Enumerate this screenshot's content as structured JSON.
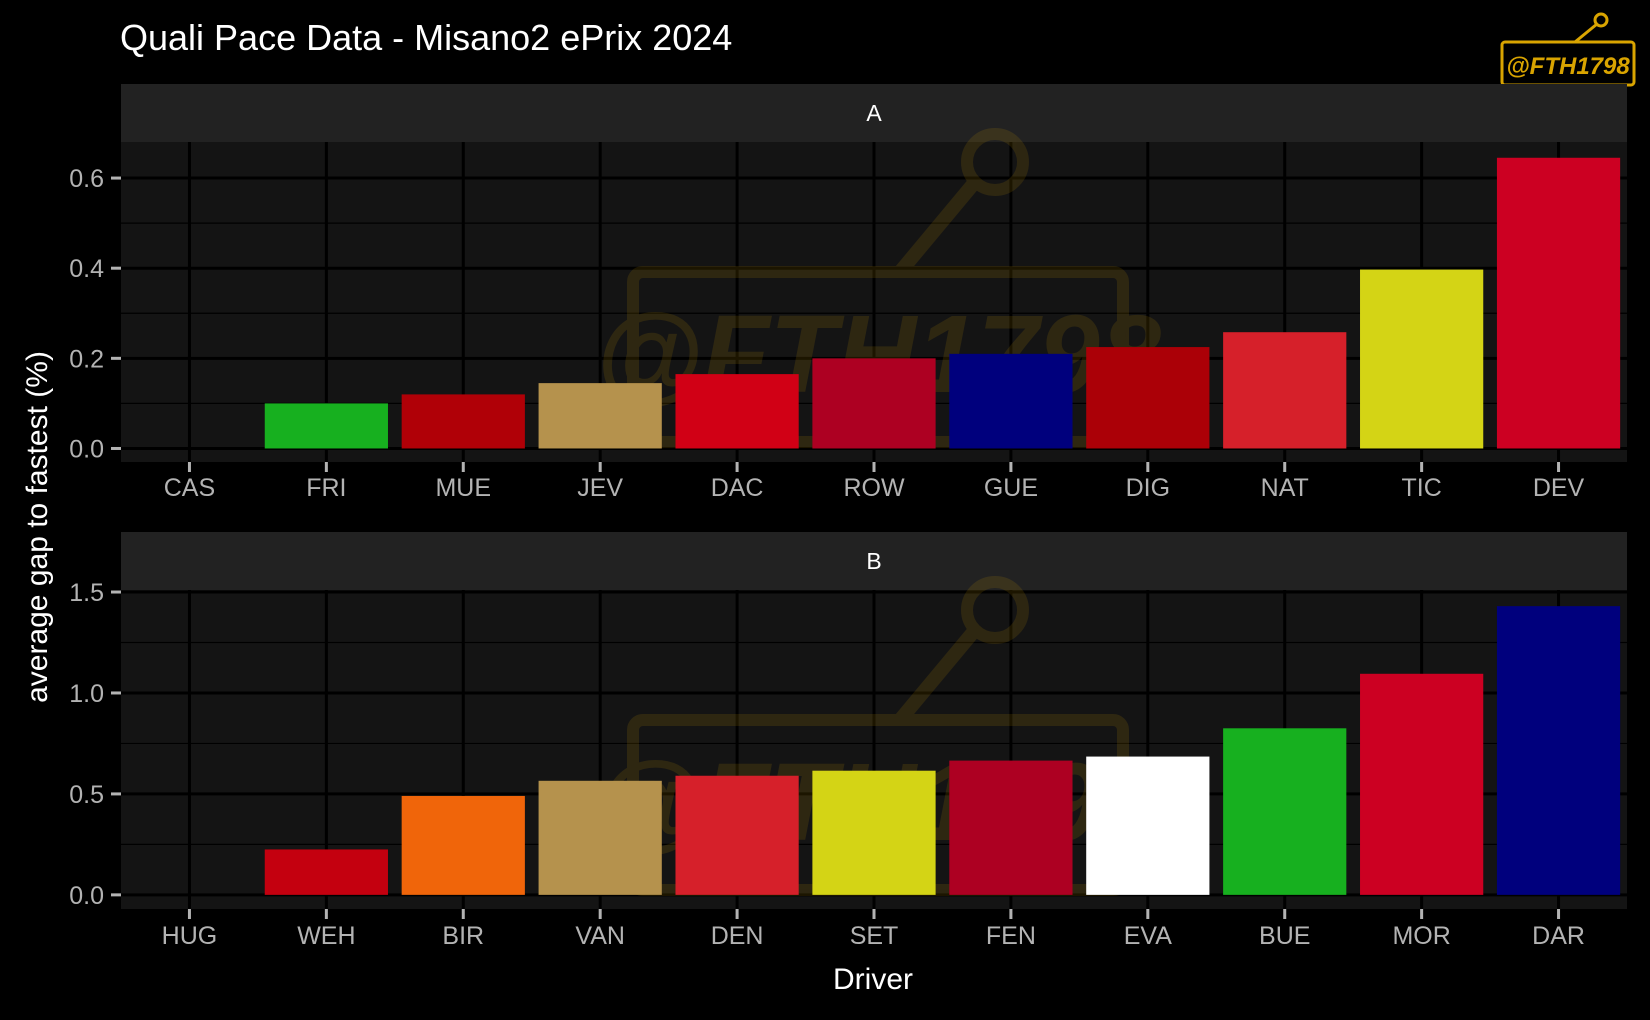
{
  "chart_data": {
    "type": "bar",
    "title": "Quali Pace Data - Misano2 ePrix 2024",
    "xlabel": "Driver",
    "ylabel": "average gap to fastest (%)",
    "watermark": "@FTH1798",
    "grid": true,
    "legend": "none",
    "colors": {
      "background": "#000000",
      "panel": "#141414",
      "strip": "#222222",
      "grid": "#000000",
      "text": "#ffffff",
      "tick_text": "#b3b3b3",
      "watermark": "#d9a400"
    },
    "panels": [
      {
        "label": "A",
        "categories": [
          "CAS",
          "FRI",
          "MUE",
          "JEV",
          "DAC",
          "ROW",
          "GUE",
          "DIG",
          "NAT",
          "TIC",
          "DEV"
        ],
        "values": [
          0.0,
          0.1,
          0.12,
          0.145,
          0.165,
          0.2,
          0.21,
          0.225,
          0.258,
          0.397,
          0.645
        ],
        "colors": [
          "#141414",
          "#17b01f",
          "#b00007",
          "#b5924d",
          "#d10015",
          "#ad0022",
          "#00007d",
          "#ab0007",
          "#d6202a",
          "#d4d415",
          "#cc0022"
        ],
        "ylim": [
          -0.03,
          0.68
        ],
        "yticks": [
          0.0,
          0.2,
          0.4,
          0.6
        ],
        "ytick_labels": [
          "0.0",
          "0.2",
          "0.4",
          "0.6"
        ]
      },
      {
        "label": "B",
        "categories": [
          "HUG",
          "WEH",
          "BIR",
          "VAN",
          "DEN",
          "SET",
          "FEN",
          "EVA",
          "BUE",
          "MOR",
          "DAR"
        ],
        "values": [
          0.0,
          0.225,
          0.49,
          0.565,
          0.59,
          0.615,
          0.665,
          0.685,
          0.825,
          1.095,
          1.43
        ],
        "colors": [
          "#141414",
          "#c4000f",
          "#f0650a",
          "#b5924d",
          "#d6202a",
          "#d4d415",
          "#ad0022",
          "#ffffff",
          "#17b01f",
          "#cc0022",
          "#00007d"
        ],
        "ylim": [
          -0.07,
          1.51
        ],
        "yticks": [
          0.0,
          0.5,
          1.0,
          1.5
        ],
        "ytick_labels": [
          "0.0",
          "0.5",
          "1.0",
          "1.5"
        ]
      }
    ]
  }
}
